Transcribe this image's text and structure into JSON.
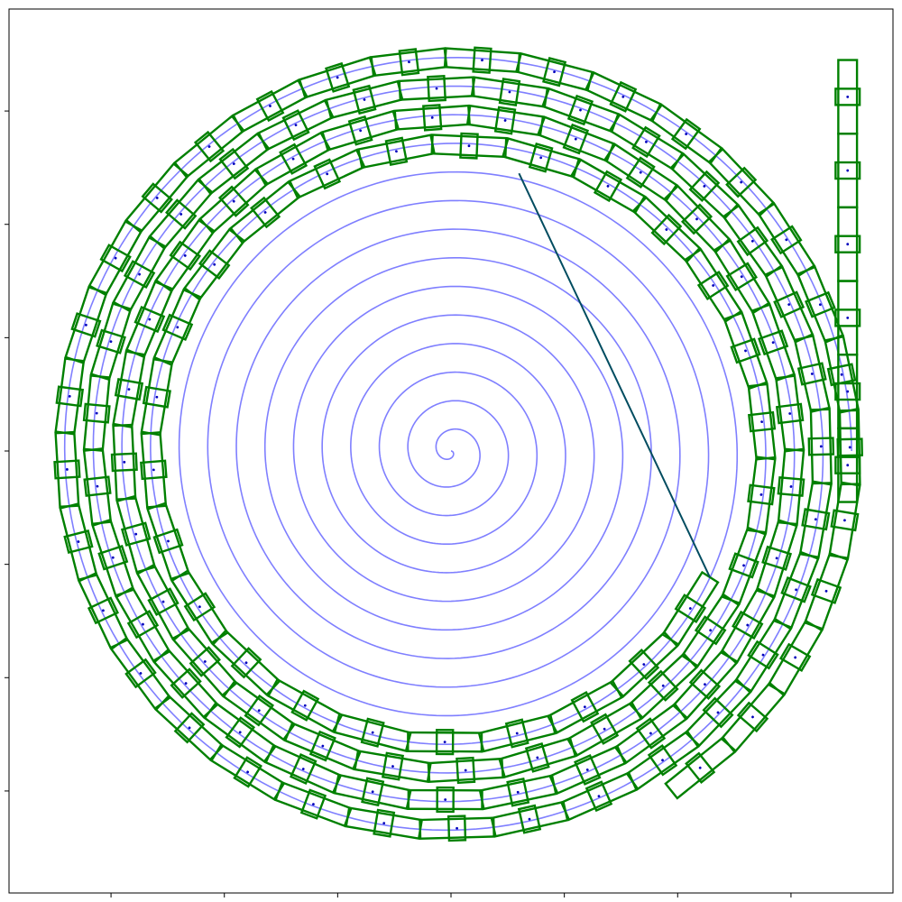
{
  "chart_data": {
    "type": "line",
    "title": "",
    "xlabel": "",
    "ylabel": "",
    "xlim": [
      -7.8,
      7.8
    ],
    "ylim": [
      -7.8,
      7.8
    ],
    "grid": false,
    "legend": "none",
    "x_ticks": [
      -6,
      -4,
      -2,
      0,
      2,
      4,
      6
    ],
    "y_ticks": [
      -6,
      -4,
      -2,
      0,
      2,
      4,
      6
    ],
    "tick_labels_shown": false,
    "spiral": {
      "kind": "archimedean",
      "r_per_turn": 0.505,
      "turns": 14.0,
      "start_angle_deg": 0,
      "direction": "clockwise",
      "color": "#7f7fff"
    },
    "chain": {
      "pitch": 1.3,
      "width": 0.33,
      "start": [
        -1.0,
        5.4
      ],
      "angle_step_deg": 0.3,
      "straight_run": {
        "x": 7.0,
        "y_start": 6.9,
        "y_end": -0.3
      },
      "link_color": "#008000",
      "center_dot_color": "#0000bb",
      "leader_color": "#004c60"
    }
  },
  "colors": {
    "spiral": "#7f7fff",
    "link": "#008000",
    "axes": "#000000"
  }
}
